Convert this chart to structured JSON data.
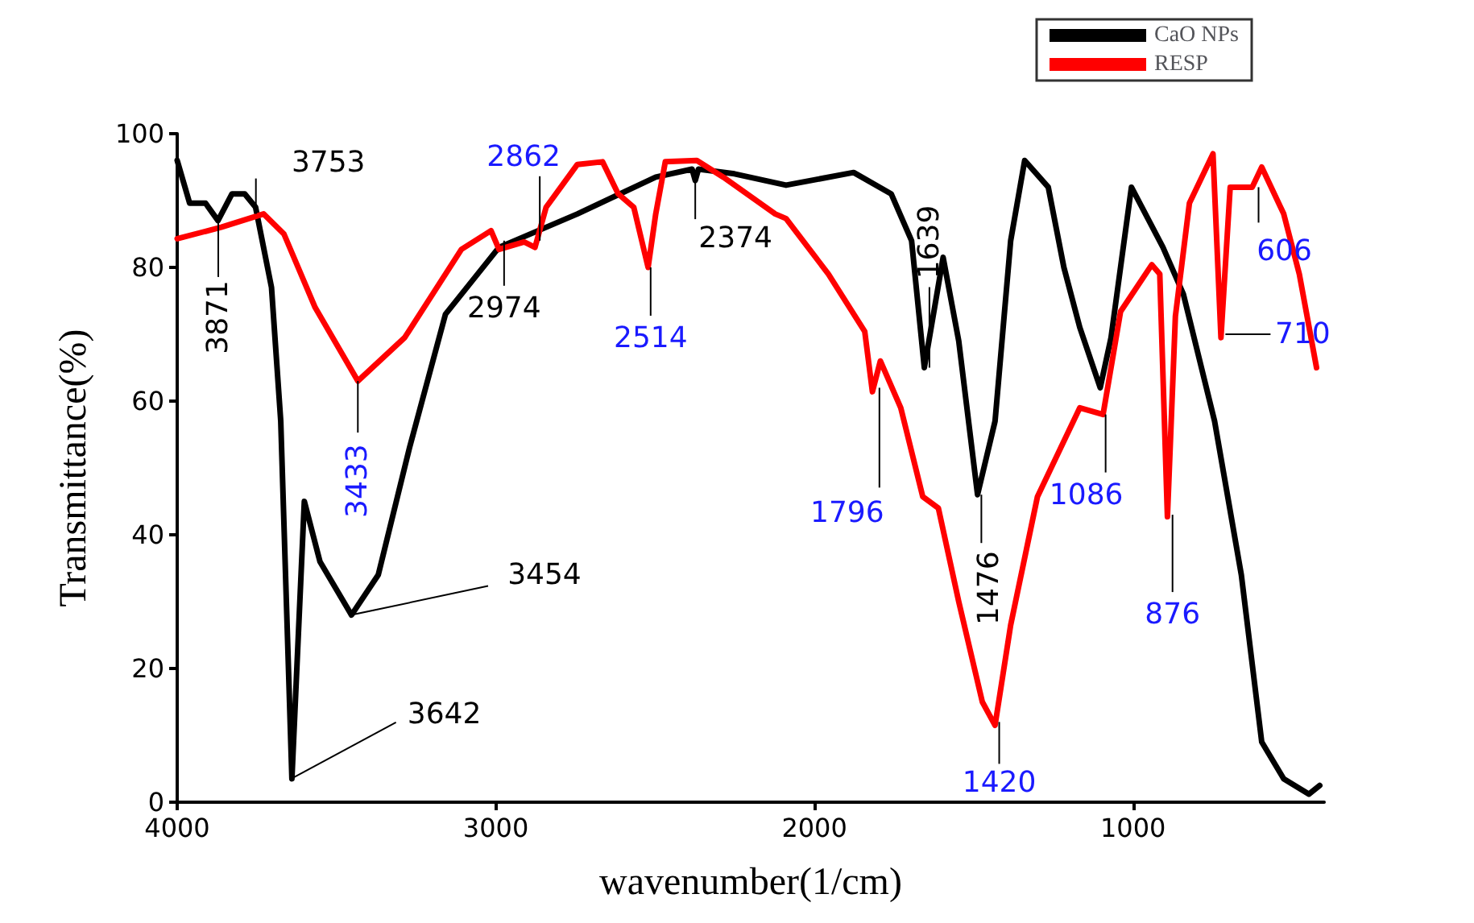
{
  "chart_data": {
    "type": "line",
    "xlabel": "wavenumber(1/cm)",
    "ylabel": "Transmittance(%)",
    "xlim": [
      4000,
      400
    ],
    "xticks": [
      4000,
      3000,
      2000,
      1000
    ],
    "ylim": [
      0,
      100
    ],
    "yticks": [
      0,
      20,
      40,
      60,
      80,
      100
    ],
    "grid": false,
    "legend": "top right",
    "marker": "none",
    "line_style": "solid",
    "series": [
      {
        "name": "CaO NPs",
        "color": "#000000",
        "x": [
          4000,
          3961,
          3911,
          3872,
          3828,
          3788,
          3754,
          3704,
          3675,
          3640,
          3601,
          3552,
          3453,
          3369,
          3271,
          3158,
          2990,
          2744,
          2498,
          2384,
          2374,
          2364,
          2251,
          2089,
          1877,
          1759,
          1695,
          1655,
          1596,
          1547,
          1488,
          1433,
          1384,
          1340,
          1266,
          1217,
          1167,
          1103,
          1069,
          1005,
          906,
          842,
          744,
          660,
          596,
          527,
          448,
          414
        ],
        "values": [
          96,
          89.6,
          89.6,
          87,
          91,
          91,
          89,
          77,
          57,
          3.5,
          45,
          36,
          28,
          34,
          53,
          73,
          83,
          88,
          93.5,
          94.7,
          93,
          94.7,
          94,
          92.3,
          94.2,
          91,
          84,
          65,
          81.5,
          69,
          46,
          57,
          84,
          96,
          92,
          80,
          71,
          62,
          69.5,
          92,
          83,
          76,
          57,
          34,
          9,
          3.5,
          1.2,
          2.5
        ]
      },
      {
        "name": "RESP",
        "color": "#ff0000",
        "x": [
          4000,
          3862,
          3729,
          3665,
          3567,
          3433,
          3286,
          3108,
          3015,
          2990,
          2911,
          2877,
          2842,
          2744,
          2665,
          2616,
          2567,
          2522,
          2498,
          2468,
          2369,
          2286,
          2123,
          2089,
          1956,
          1842,
          1818,
          1793,
          1729,
          1660,
          1611,
          1547,
          1473,
          1433,
          1384,
          1300,
          1217,
          1167,
          1094,
          1039,
          941,
          916,
          892,
          867,
          823,
          749,
          724,
          695,
          626,
          596,
          527,
          478,
          424
        ],
        "values": [
          84.3,
          86,
          88,
          85,
          74,
          63,
          69.5,
          82.7,
          85.5,
          82.7,
          83.8,
          83,
          89,
          95.4,
          95.8,
          91,
          89,
          80,
          88,
          95.8,
          96,
          93.5,
          88,
          87.3,
          79,
          70.4,
          61.4,
          66,
          59,
          45.7,
          44,
          30,
          15,
          11.5,
          26.5,
          45.7,
          54,
          59,
          58,
          73.4,
          80.4,
          79,
          42.7,
          72.7,
          89.6,
          97,
          69.5,
          92,
          92,
          95,
          88,
          79,
          65
        ]
      }
    ],
    "annotations": [
      {
        "text": "3871",
        "x": 3871,
        "y": 87
      },
      {
        "text": "3753",
        "x": 3753,
        "y": 88
      },
      {
        "text": "3642",
        "x": 3642,
        "y": 3.5
      },
      {
        "text": "3454",
        "x": 3454,
        "y": 28
      },
      {
        "text": "3433",
        "x": 3433,
        "y": 63
      },
      {
        "text": "2974",
        "x": 2974,
        "y": 84
      },
      {
        "text": "2862",
        "x": 2862,
        "y": 84
      },
      {
        "text": "2514",
        "x": 2514,
        "y": 80
      },
      {
        "text": "2374",
        "x": 2374,
        "y": 93
      },
      {
        "text": "1796",
        "x": 1796,
        "y": 62
      },
      {
        "text": "1639",
        "x": 1639,
        "y": 65
      },
      {
        "text": "1476",
        "x": 1476,
        "y": 46
      },
      {
        "text": "1420",
        "x": 1420,
        "y": 12
      },
      {
        "text": "1086",
        "x": 1086,
        "y": 58
      },
      {
        "text": "876",
        "x": 876,
        "y": 43
      },
      {
        "text": "710",
        "x": 710,
        "y": 70
      },
      {
        "text": "606",
        "x": 606,
        "y": 92
      }
    ]
  }
}
